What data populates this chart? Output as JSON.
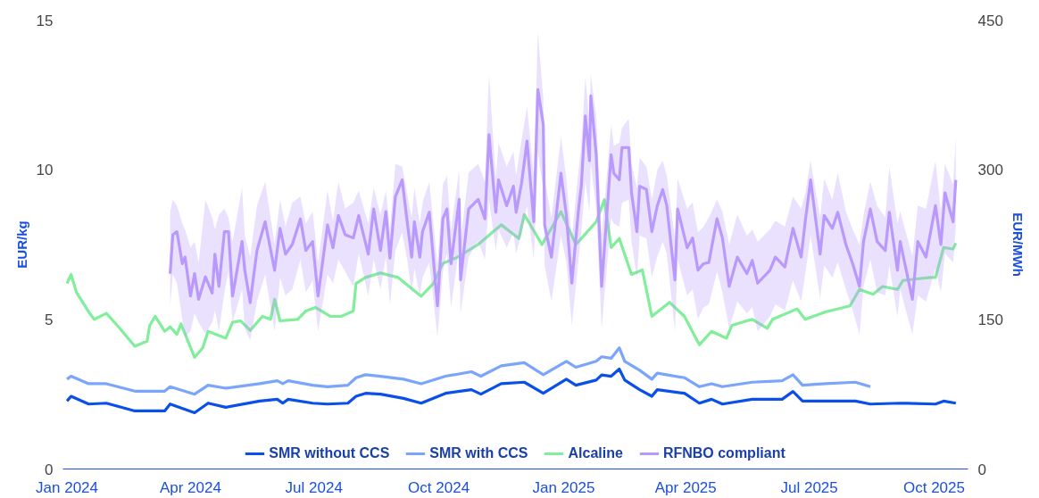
{
  "chart_data": {
    "type": "line",
    "ylabel": "EUR/kg",
    "y2label": "EUR/MWh",
    "xlim": [
      "2023-12-29",
      "2025-10-26"
    ],
    "xticks": [
      {
        "value": "2024-01-01",
        "label": "Jan 2024"
      },
      {
        "value": "2024-04-01",
        "label": "Apr 2024"
      },
      {
        "value": "2024-07-01",
        "label": "Jul 2024"
      },
      {
        "value": "2024-10-01",
        "label": "Oct 2024"
      },
      {
        "value": "2025-01-01",
        "label": "Jan 2025"
      },
      {
        "value": "2025-04-01",
        "label": "Apr 2025"
      },
      {
        "value": "2025-07-01",
        "label": "Jul 2025"
      },
      {
        "value": "2025-10-01",
        "label": "Oct 2025"
      }
    ],
    "ylim": [
      0,
      15
    ],
    "yticks": [
      0,
      5,
      10,
      15
    ],
    "y2lim": [
      0,
      450
    ],
    "y2ticks": [
      0,
      150,
      300,
      450
    ],
    "grid": false,
    "legend": "bottom",
    "series": [
      {
        "name": "SMR without CCS",
        "color": "#0a50e8",
        "x": [
          "2024-01-01",
          "2024-01-04",
          "2024-01-17",
          "2024-01-30",
          "2024-02-20",
          "2024-03-13",
          "2024-03-17",
          "2024-04-04",
          "2024-04-14",
          "2024-04-27",
          "2024-05-22",
          "2024-06-04",
          "2024-06-08",
          "2024-06-12",
          "2024-06-30",
          "2024-07-11",
          "2024-07-26",
          "2024-08-01",
          "2024-08-08",
          "2024-08-19",
          "2024-09-05",
          "2024-09-18",
          "2024-10-06",
          "2024-10-25",
          "2024-11-01",
          "2024-11-16",
          "2024-12-03",
          "2024-12-17",
          "2025-01-03",
          "2025-01-10",
          "2025-01-25",
          "2025-01-29",
          "2025-02-05",
          "2025-02-11",
          "2025-02-15",
          "2025-02-26",
          "2025-03-07",
          "2025-03-11",
          "2025-03-31",
          "2025-04-11",
          "2025-04-20",
          "2025-04-28",
          "2025-05-20",
          "2025-06-11",
          "2025-06-19",
          "2025-06-26",
          "2025-07-13",
          "2025-08-04",
          "2025-08-15",
          "2025-09-06",
          "2025-10-02",
          "2025-10-08",
          "2025-10-17"
        ],
        "values": [
          2.27,
          2.43,
          2.17,
          2.2,
          1.94,
          1.94,
          2.17,
          1.88,
          2.2,
          2.06,
          2.27,
          2.33,
          2.2,
          2.33,
          2.2,
          2.17,
          2.2,
          2.43,
          2.53,
          2.5,
          2.36,
          2.2,
          2.53,
          2.65,
          2.5,
          2.85,
          2.9,
          2.53,
          3.0,
          2.8,
          2.97,
          3.14,
          3.1,
          3.34,
          2.97,
          2.65,
          2.43,
          2.65,
          2.53,
          2.2,
          2.33,
          2.17,
          2.33,
          2.33,
          2.59,
          2.27,
          2.27,
          2.27,
          2.17,
          2.2,
          2.17,
          2.27,
          2.2
        ]
      },
      {
        "name": "SMR with CCS",
        "color": "#7ba5fb",
        "x": [
          "2024-01-01",
          "2024-01-04",
          "2024-01-17",
          "2024-01-30",
          "2024-02-20",
          "2024-03-13",
          "2024-03-17",
          "2024-04-04",
          "2024-04-14",
          "2024-04-27",
          "2024-05-22",
          "2024-06-04",
          "2024-06-08",
          "2024-06-12",
          "2024-06-30",
          "2024-07-11",
          "2024-07-26",
          "2024-08-01",
          "2024-08-08",
          "2024-08-19",
          "2024-09-05",
          "2024-09-18",
          "2024-10-06",
          "2024-10-25",
          "2024-11-01",
          "2024-11-16",
          "2024-12-03",
          "2024-12-17",
          "2025-01-03",
          "2025-01-10",
          "2025-01-25",
          "2025-01-29",
          "2025-02-05",
          "2025-02-11",
          "2025-02-15",
          "2025-02-26",
          "2025-03-07",
          "2025-03-11",
          "2025-03-31",
          "2025-04-11",
          "2025-04-20",
          "2025-04-28",
          "2025-05-20",
          "2025-06-11",
          "2025-06-19",
          "2025-06-26",
          "2025-07-13",
          "2025-08-04",
          "2025-08-15"
        ],
        "values": [
          3.0,
          3.1,
          2.85,
          2.85,
          2.6,
          2.6,
          2.75,
          2.5,
          2.8,
          2.7,
          2.85,
          2.95,
          2.85,
          2.95,
          2.8,
          2.75,
          2.8,
          3.05,
          3.15,
          3.1,
          3.0,
          2.85,
          3.1,
          3.25,
          3.1,
          3.45,
          3.55,
          3.15,
          3.6,
          3.4,
          3.6,
          3.75,
          3.7,
          4.05,
          3.6,
          3.3,
          3.0,
          3.2,
          3.05,
          2.75,
          2.85,
          2.75,
          2.9,
          2.95,
          3.15,
          2.8,
          2.85,
          2.9,
          2.75
        ]
      },
      {
        "name": "Alcaline",
        "color": "#80ee9a",
        "x": [
          "2024-01-01",
          "2024-01-04",
          "2024-01-08",
          "2024-01-17",
          "2024-01-21",
          "2024-01-30",
          "2024-02-07",
          "2024-02-20",
          "2024-02-29",
          "2024-03-02",
          "2024-03-06",
          "2024-03-13",
          "2024-03-17",
          "2024-03-22",
          "2024-03-25",
          "2024-04-04",
          "2024-04-10",
          "2024-04-14",
          "2024-04-27",
          "2024-05-02",
          "2024-05-08",
          "2024-05-15",
          "2024-05-24",
          "2024-05-30",
          "2024-06-02",
          "2024-06-06",
          "2024-06-19",
          "2024-06-25",
          "2024-07-02",
          "2024-07-13",
          "2024-07-21",
          "2024-07-30",
          "2024-08-01",
          "2024-08-08",
          "2024-08-19",
          "2024-09-01",
          "2024-09-18",
          "2024-09-27",
          "2024-10-04",
          "2024-10-14",
          "2024-10-30",
          "2024-11-16",
          "2024-11-29",
          "2024-12-03",
          "2024-12-16",
          "2024-12-30",
          "2025-01-10",
          "2025-01-25",
          "2025-01-31",
          "2025-02-05",
          "2025-02-11",
          "2025-02-20",
          "2025-02-28",
          "2025-03-07",
          "2025-03-20",
          "2025-03-31",
          "2025-04-11",
          "2025-04-20",
          "2025-05-01",
          "2025-05-05",
          "2025-05-20",
          "2025-05-31",
          "2025-06-04",
          "2025-06-22",
          "2025-06-28",
          "2025-07-13",
          "2025-07-31",
          "2025-08-07",
          "2025-08-17",
          "2025-08-24",
          "2025-09-04",
          "2025-09-08",
          "2025-09-28",
          "2025-10-02",
          "2025-10-08",
          "2025-10-15",
          "2025-10-17"
        ],
        "values": [
          6.2,
          6.5,
          5.9,
          5.25,
          5.0,
          5.2,
          4.8,
          4.1,
          4.27,
          4.8,
          5.1,
          4.6,
          4.75,
          4.5,
          4.85,
          3.73,
          4.05,
          4.6,
          4.37,
          4.9,
          4.95,
          4.63,
          5.1,
          5.0,
          5.67,
          4.95,
          5.0,
          5.28,
          5.4,
          5.1,
          5.1,
          5.28,
          6.2,
          6.4,
          6.55,
          6.4,
          5.77,
          6.2,
          6.87,
          7.06,
          7.5,
          8.16,
          7.7,
          8.5,
          7.5,
          8.6,
          7.5,
          8.26,
          9.0,
          7.4,
          7.7,
          6.5,
          6.65,
          5.1,
          5.57,
          5.1,
          4.15,
          4.6,
          4.37,
          4.8,
          5.0,
          4.7,
          5.0,
          5.35,
          5.0,
          5.25,
          5.45,
          6.0,
          5.84,
          6.1,
          6.0,
          6.3,
          6.4,
          6.4,
          7.4,
          7.35,
          7.55
        ]
      },
      {
        "name": "RFNBO compliant",
        "color": "#b99afc",
        "x": [
          "2024-03-17",
          "2024-03-19",
          "2024-03-22",
          "2024-03-26",
          "2024-03-28",
          "2024-04-01",
          "2024-04-04",
          "2024-04-07",
          "2024-04-12",
          "2024-04-17",
          "2024-04-19",
          "2024-04-22",
          "2024-04-26",
          "2024-04-29",
          "2024-05-02",
          "2024-05-09",
          "2024-05-11",
          "2024-05-15",
          "2024-05-20",
          "2024-05-26",
          "2024-06-02",
          "2024-06-06",
          "2024-06-10",
          "2024-06-15",
          "2024-06-21",
          "2024-06-25",
          "2024-06-30",
          "2024-07-04",
          "2024-07-11",
          "2024-07-15",
          "2024-07-19",
          "2024-07-24",
          "2024-07-30",
          "2024-08-03",
          "2024-08-10",
          "2024-08-14",
          "2024-08-19",
          "2024-08-23",
          "2024-08-26",
          "2024-08-30",
          "2024-09-04",
          "2024-09-08",
          "2024-09-11",
          "2024-09-13",
          "2024-09-17",
          "2024-09-19",
          "2024-09-24",
          "2024-09-30",
          "2024-10-04",
          "2024-10-07",
          "2024-10-10",
          "2024-10-16",
          "2024-10-17",
          "2024-10-23",
          "2024-10-30",
          "2024-11-04",
          "2024-11-07",
          "2024-11-12",
          "2024-11-14",
          "2024-11-20",
          "2024-11-25",
          "2024-11-27",
          "2024-12-01",
          "2024-12-05",
          "2024-12-10",
          "2024-12-13",
          "2024-12-17",
          "2024-12-18",
          "2024-12-23",
          "2024-12-30",
          "2025-01-03",
          "2025-01-07",
          "2025-01-12",
          "2025-01-14",
          "2025-01-17",
          "2025-01-20",
          "2025-01-21",
          "2025-01-25",
          "2025-01-29",
          "2025-02-05",
          "2025-02-07",
          "2025-02-11",
          "2025-02-13",
          "2025-02-18",
          "2025-02-20",
          "2025-02-24",
          "2025-02-26",
          "2025-03-03",
          "2025-03-07",
          "2025-03-11",
          "2025-03-15",
          "2025-03-18",
          "2025-03-24",
          "2025-03-26",
          "2025-04-02",
          "2025-04-06",
          "2025-04-10",
          "2025-04-14",
          "2025-04-18",
          "2025-04-24",
          "2025-04-28",
          "2025-05-03",
          "2025-05-09",
          "2025-05-16",
          "2025-05-20",
          "2025-05-24",
          "2025-06-02",
          "2025-06-06",
          "2025-06-13",
          "2025-06-19",
          "2025-06-25",
          "2025-06-28",
          "2025-07-02",
          "2025-07-09",
          "2025-07-12",
          "2025-07-18",
          "2025-07-22",
          "2025-07-28",
          "2025-08-02",
          "2025-08-07",
          "2025-08-10",
          "2025-08-15",
          "2025-08-20",
          "2025-08-26",
          "2025-08-29",
          "2025-09-04",
          "2025-09-06",
          "2025-09-15",
          "2025-09-19",
          "2025-09-25",
          "2025-10-02",
          "2025-10-06",
          "2025-10-09",
          "2025-10-15",
          "2025-10-17"
        ],
        "values": [
          6.53,
          7.83,
          7.93,
          6.86,
          7.08,
          5.78,
          6.53,
          5.67,
          6.42,
          5.88,
          7.18,
          6.1,
          7.93,
          7.93,
          5.78,
          7.6,
          6.64,
          5.56,
          7.3,
          8.26,
          6.64,
          8.04,
          7.18,
          7.5,
          8.36,
          7.3,
          7.6,
          5.78,
          8.15,
          7.39,
          8.47,
          7.83,
          7.72,
          8.47,
          7.18,
          8.69,
          7.3,
          8.6,
          7.04,
          9.1,
          9.66,
          8.15,
          7.08,
          8.26,
          7.08,
          7.93,
          8.58,
          5.45,
          8.36,
          8.69,
          6.86,
          9.01,
          6.32,
          8.69,
          9.01,
          8.36,
          11.17,
          8.58,
          9.66,
          8.8,
          9.45,
          8.58,
          9.55,
          10.96,
          8.26,
          12.68,
          11.5,
          8.15,
          7.08,
          9.88,
          8.48,
          6.21,
          8.69,
          9.45,
          11.8,
          10.3,
          12.47,
          10.5,
          6.1,
          10.5,
          9.88,
          9.66,
          10.74,
          10.74,
          9.23,
          7.93,
          9.45,
          9.34,
          7.93,
          8.8,
          9.34,
          8.8,
          6.32,
          8.69,
          7.39,
          7.72,
          6.64,
          6.86,
          6.9,
          8.36,
          7.72,
          6.1,
          7.08,
          6.53,
          6.97,
          6.21,
          6.64,
          7.08,
          6.75,
          8.04,
          7.08,
          8.26,
          9.66,
          7.18,
          8.47,
          8.04,
          8.58,
          7.5,
          6.86,
          6.1,
          7.6,
          8.69,
          7.6,
          7.3,
          8.58,
          6.64,
          7.6,
          5.67,
          7.6,
          7.08,
          8.8,
          7.5,
          9.23,
          8.26,
          9.66
        ],
        "lower": [
          5.4,
          6.5,
          6.2,
          5.0,
          4.4,
          4.6,
          5.2,
          4.9,
          4.5,
          4.9,
          5.3,
          4.6,
          5.9,
          6.6,
          4.9,
          6.0,
          4.7,
          4.3,
          5.6,
          6.5,
          4.6,
          6.4,
          5.8,
          6.0,
          7.0,
          5.9,
          6.3,
          4.6,
          6.5,
          6.2,
          7.0,
          6.6,
          6.1,
          7.2,
          5.8,
          7.0,
          6.0,
          7.1,
          5.5,
          7.3,
          7.9,
          6.9,
          5.9,
          6.7,
          5.8,
          6.4,
          6.9,
          4.4,
          6.6,
          7.2,
          5.4,
          7.4,
          5.2,
          7.1,
          7.6,
          7.0,
          9.0,
          7.3,
          8.0,
          7.4,
          7.9,
          7.2,
          7.9,
          8.8,
          7.0,
          10.6,
          9.3,
          6.8,
          5.6,
          7.8,
          6.9,
          4.8,
          7.0,
          7.9,
          9.6,
          8.6,
          10.2,
          8.7,
          4.7,
          8.4,
          8.2,
          8.1,
          8.9,
          9.0,
          7.6,
          6.4,
          7.8,
          7.7,
          6.4,
          7.1,
          7.6,
          7.2,
          4.6,
          7.0,
          5.8,
          6.0,
          5.0,
          5.4,
          5.5,
          6.6,
          5.9,
          4.7,
          5.6,
          5.2,
          5.4,
          4.6,
          5.1,
          5.5,
          5.3,
          6.3,
          5.6,
          6.5,
          7.8,
          5.7,
          6.8,
          6.4,
          6.9,
          6.0,
          5.3,
          4.5,
          6.1,
          7.0,
          5.9,
          5.8,
          6.8,
          5.1,
          6.0,
          4.5,
          5.8,
          5.6,
          6.7,
          5.9,
          7.2,
          6.9,
          8.1
        ],
        "upper": [
          8.6,
          9.0,
          8.8,
          8.2,
          8.0,
          7.4,
          7.6,
          6.9,
          9.0,
          8.4,
          8.0,
          8.5,
          8.7,
          8.4,
          7.6,
          9.4,
          7.8,
          7.1,
          8.8,
          9.6,
          7.5,
          9.0,
          8.1,
          8.9,
          9.1,
          8.2,
          8.6,
          6.9,
          9.3,
          8.3,
          9.6,
          8.7,
          8.9,
          9.3,
          8.2,
          9.4,
          8.5,
          9.3,
          8.0,
          10.2,
          10.1,
          9.1,
          8.4,
          9.4,
          8.2,
          8.9,
          9.6,
          6.8,
          9.5,
          9.8,
          8.0,
          10.0,
          7.6,
          9.9,
          10.2,
          9.6,
          13.2,
          9.7,
          10.9,
          10.1,
          10.6,
          9.8,
          11.0,
          12.1,
          9.8,
          14.6,
          12.4,
          9.7,
          8.4,
          11.1,
          9.7,
          7.7,
          10.0,
          10.8,
          13.1,
          11.6,
          13.2,
          11.8,
          7.8,
          11.5,
          10.8,
          10.9,
          11.4,
          11.7,
          10.2,
          9.4,
          10.4,
          10.1,
          9.0,
          10.0,
          10.3,
          9.8,
          7.7,
          9.7,
          8.7,
          8.9,
          7.9,
          8.1,
          8.4,
          9.0,
          8.6,
          7.5,
          8.5,
          7.8,
          8.0,
          7.6,
          8.0,
          8.3,
          8.1,
          9.1,
          8.7,
          9.2,
          10.3,
          8.4,
          9.7,
          9.0,
          9.9,
          8.6,
          8.0,
          7.5,
          8.5,
          9.6,
          8.8,
          8.4,
          10.1,
          8.2,
          8.6,
          7.1,
          8.8,
          8.7,
          10.3,
          8.6,
          10.2,
          9.5,
          11.1
        ]
      }
    ]
  }
}
